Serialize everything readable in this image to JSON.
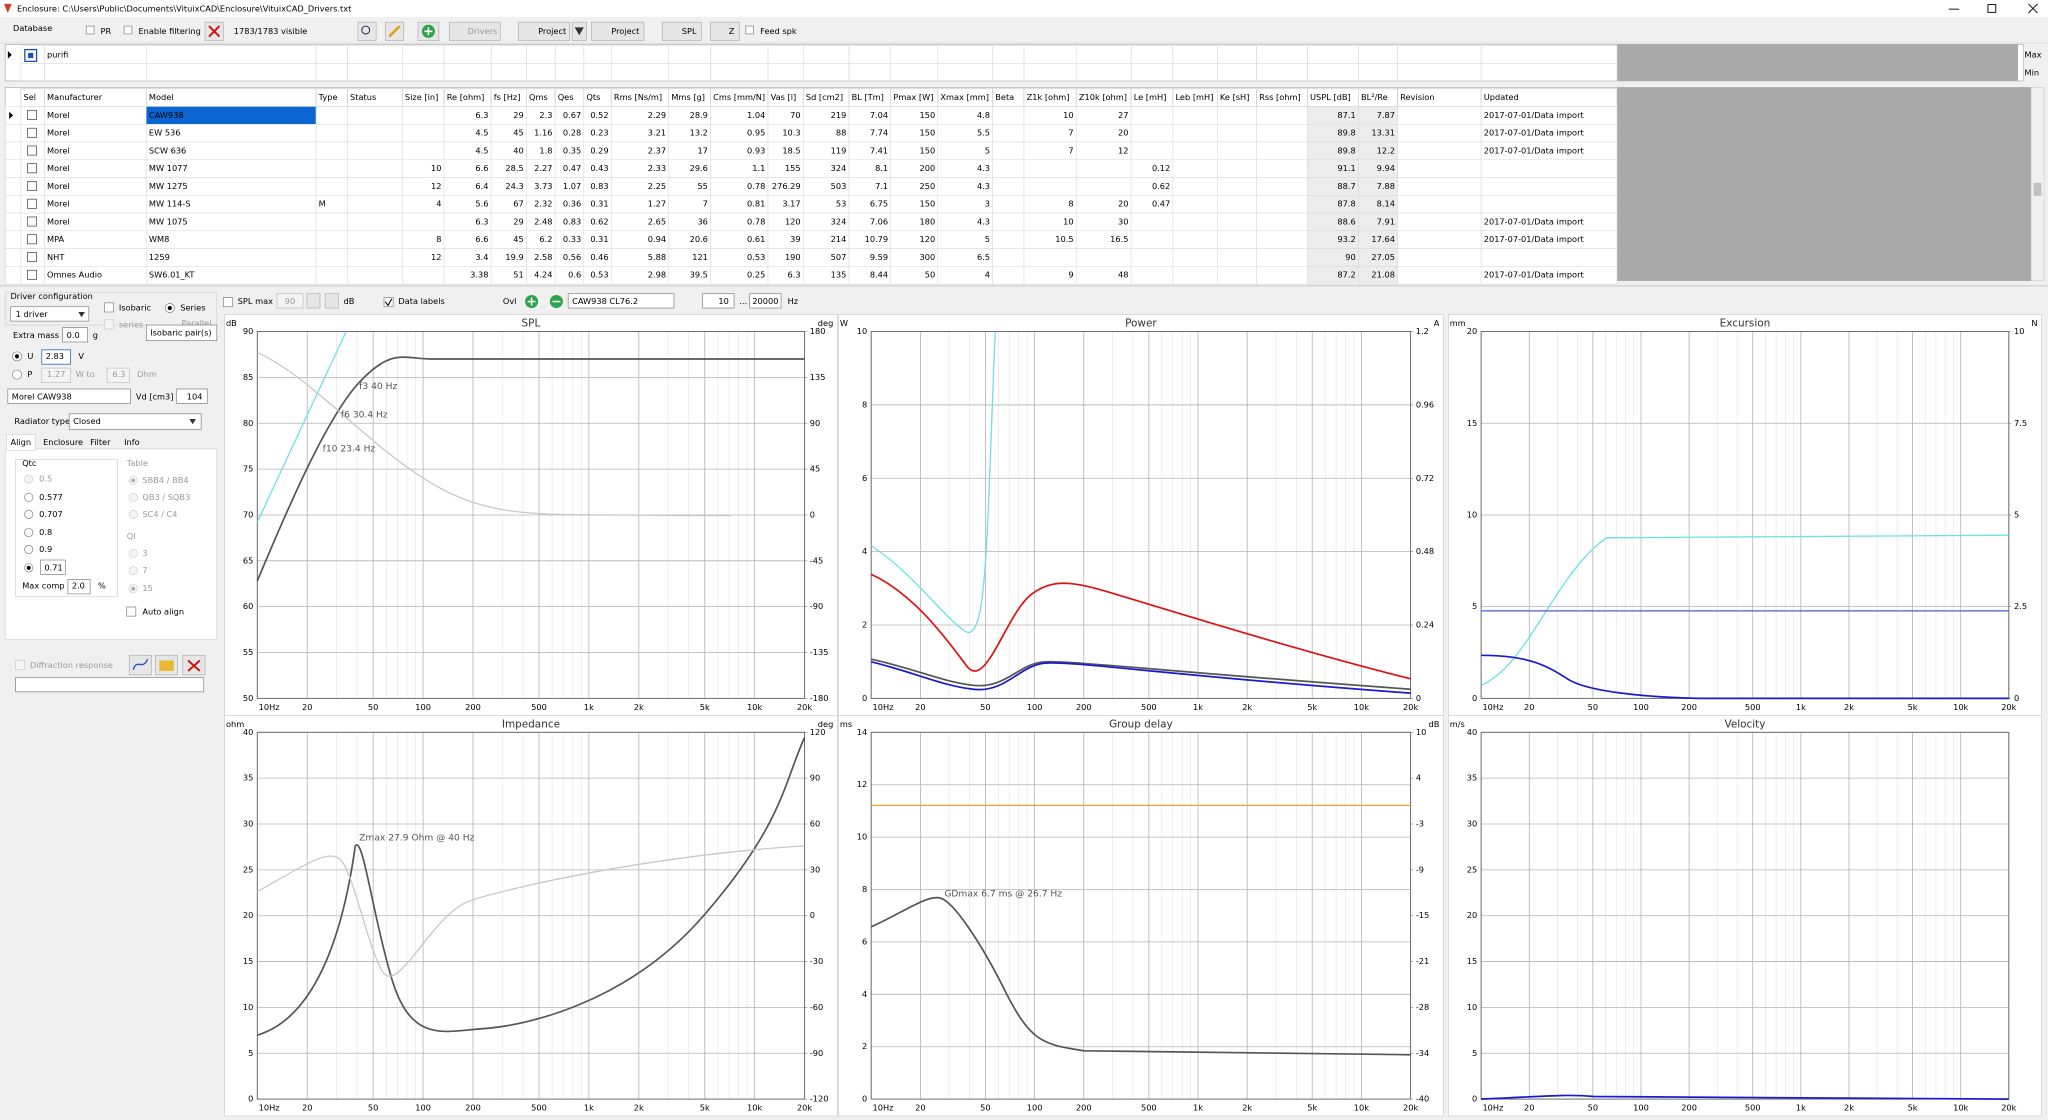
{
  "title_bar": {
    "title": "Enclosure: C:\\Users\\Public\\Documents\\VituixCAD\\Enclosure\\VituixCAD_Drivers.txt"
  },
  "toolbar": {
    "database": "Database",
    "pr": "PR",
    "enable_filtering": "Enable filtering",
    "visible": "1783/1783 visible",
    "drivers": "Drivers",
    "project": "Project",
    "project_2": "Project",
    "spl": "SPL",
    "z": "Z",
    "feed_spk": "Feed spk"
  },
  "filter": {
    "text": "purifi",
    "max": "Max",
    "min": "Min"
  },
  "table": {
    "columns": [
      "Sel",
      "Manufacturer",
      "Model",
      "Type",
      "Status",
      "Size [in]",
      "Re [ohm]",
      "fs [Hz]",
      "Qms",
      "Qes",
      "Qts",
      "Rms [Ns/m]",
      "Mms [g]",
      "Cms [mm/N]",
      "Vas [l]",
      "Sd [cm2]",
      "BL [Tm]",
      "Pmax [W]",
      "Xmax [mm]",
      "Beta",
      "Z1k [ohm]",
      "Z10k [ohm]",
      "Le [mH]",
      "Leb [mH]",
      "Ke [sH]",
      "Rss [ohm]",
      "USPL [dB]",
      "BL²/Re",
      "Revision",
      "Updated"
    ],
    "rows": [
      [
        "Morel",
        "CAW938",
        null,
        null,
        null,
        6.3,
        29,
        2.3,
        0.67,
        0.52,
        2.29,
        28.9,
        1.04,
        70,
        219,
        7.04,
        150,
        4.8,
        null,
        10,
        27,
        null,
        null,
        null,
        null,
        87.1,
        7.87,
        null,
        "2017-07-01/Data import"
      ],
      [
        "Morel",
        "EW 536",
        null,
        null,
        null,
        4.5,
        45,
        1.16,
        0.28,
        0.23,
        3.21,
        13.2,
        0.95,
        10.3,
        88,
        7.74,
        150,
        5.5,
        null,
        7,
        20,
        null,
        null,
        null,
        null,
        89.8,
        13.31,
        null,
        "2017-07-01/Data import"
      ],
      [
        "Morel",
        "SCW 636",
        null,
        null,
        null,
        4.5,
        40,
        1.8,
        0.35,
        0.29,
        2.37,
        17,
        0.93,
        18.5,
        119,
        7.41,
        150,
        5,
        null,
        7,
        12,
        null,
        null,
        null,
        null,
        89.8,
        12.2,
        null,
        "2017-07-01/Data import"
      ],
      [
        "Morel",
        "MW 1077",
        null,
        null,
        10,
        6.6,
        28.5,
        2.27,
        0.47,
        0.43,
        2.33,
        29.6,
        1.1,
        155,
        324,
        8.1,
        200,
        4.3,
        null,
        null,
        null,
        0.12,
        null,
        null,
        null,
        91.1,
        9.94,
        null,
        null
      ],
      [
        "Morel",
        "MW 1275",
        null,
        null,
        12,
        6.4,
        24.3,
        3.73,
        1.07,
        0.83,
        2.25,
        55,
        0.78,
        276.29,
        503,
        7.1,
        250,
        4.3,
        null,
        null,
        null,
        0.62,
        null,
        null,
        null,
        88.7,
        7.88,
        null,
        null
      ],
      [
        "Morel",
        "MW 114-S",
        "M",
        null,
        4,
        5.6,
        67,
        2.32,
        0.36,
        0.31,
        1.27,
        7,
        0.81,
        3.17,
        53,
        6.75,
        150,
        3,
        null,
        8,
        20,
        0.47,
        null,
        null,
        null,
        87.8,
        8.14,
        null,
        null
      ],
      [
        "Morel",
        "MW 1075",
        null,
        null,
        null,
        6.3,
        29,
        2.48,
        0.83,
        0.62,
        2.65,
        36,
        0.78,
        120,
        324,
        7.06,
        180,
        4.3,
        null,
        10,
        30,
        null,
        null,
        null,
        null,
        88.6,
        7.91,
        null,
        "2017-07-01/Data import"
      ],
      [
        "MPA",
        "WM8",
        null,
        null,
        8,
        6.6,
        45,
        6.2,
        0.33,
        0.31,
        0.94,
        20.6,
        0.61,
        39,
        214,
        10.79,
        120,
        5,
        null,
        10.5,
        16.5,
        null,
        null,
        null,
        null,
        93.2,
        17.64,
        null,
        "2017-07-01/Data import"
      ],
      [
        "NHT",
        "1259",
        null,
        null,
        12,
        3.4,
        19.9,
        2.58,
        0.56,
        0.46,
        5.88,
        121,
        0.53,
        190,
        507,
        9.59,
        300,
        6.5,
        null,
        null,
        null,
        null,
        null,
        null,
        null,
        90,
        27.05,
        null,
        null
      ],
      [
        "Omnes Audio",
        "SW6.01_KT",
        null,
        null,
        null,
        3.38,
        51,
        4.24,
        0.6,
        0.53,
        2.98,
        39.5,
        0.25,
        6.3,
        135,
        8.44,
        50,
        4,
        null,
        9,
        48,
        null,
        null,
        null,
        null,
        87.2,
        21.08,
        null,
        "2017-07-01/Data import"
      ]
    ]
  },
  "left_panel": {
    "driver_configuration": "Driver configuration",
    "drivers": "1 driver",
    "isobaric": "Isobaric",
    "series": "Series",
    "series_2": "series",
    "parallel": "Parallel",
    "tooltip": "Isobaric pair(s)",
    "extra_mass": "Extra mass",
    "extra_mass_value": "0.0",
    "extra_mass_unit": "g",
    "u": "U",
    "u_value": 2.83,
    "u_unit": "V",
    "p": "P",
    "p_value": 1.27,
    "w_to": "W to",
    "ohm_value": 6.3,
    "ohm": "Ohm",
    "driver_name": "Morel CAW938",
    "vd": "Vd [cm3]",
    "vd_value": 104,
    "radiator_type": "Radiator type",
    "radiator_value": "Closed",
    "tabs": [
      "Align",
      "Enclosure",
      "Filter",
      "Info"
    ],
    "qtc": "Qtc",
    "qtc_options": [
      0.5,
      0.577,
      0.707,
      0.8,
      0.9
    ],
    "qtc_value": 0.71,
    "max_comp": "Max comp",
    "max_comp_value": "2.0",
    "max_comp_unit": "%",
    "table": "Table",
    "table_options": [
      "SBB4 / BB4",
      "QB3 / SQB3",
      "SC4 / C4"
    ],
    "qi": "QI",
    "qi_options": [
      3,
      7,
      15
    ],
    "auto_align": "Auto align",
    "diffraction_response": "Diffraction response"
  },
  "graph_bar": {
    "spl_max": "SPL max",
    "spl_max_value": 90,
    "db": "dB",
    "data_labels": "Data labels",
    "ovl": "Ovl",
    "overlay": "CAW938 CL76.2",
    "f_min": 10,
    "dots": "...",
    "f_max": 20000,
    "hz": "Hz"
  },
  "graphs": [
    {
      "title": "SPL",
      "left_unit": "dB",
      "right_unit": "deg",
      "xlim": [
        10,
        20000
      ],
      "xticks": [
        {
          "value": 10,
          "label": "10Hz"
        },
        20,
        50,
        100,
        200,
        500,
        {
          "value": 1000,
          "label": "1k"
        },
        {
          "value": 2000,
          "label": "2k"
        },
        {
          "value": 5000,
          "label": "5k"
        },
        {
          "value": 10000,
          "label": "10k"
        },
        {
          "value": 20000,
          "label": "20k"
        }
      ],
      "ylim": [
        50,
        90
      ],
      "yticks": [
        50,
        55,
        60,
        65,
        70,
        75,
        80,
        85,
        90
      ],
      "y2lim": [
        -180,
        180
      ],
      "y2ticks": [
        -180,
        -135,
        -90,
        -45,
        0,
        45,
        90,
        135,
        180
      ],
      "annotations": [
        "f3 40 Hz",
        "f6 30.4 Hz",
        "f10 23.4 Hz"
      ]
    },
    {
      "title": "Power",
      "left_unit": "W",
      "right_unit": "A",
      "xlim": [
        10,
        20000
      ],
      "xticks": [
        {
          "value": 10,
          "label": "10Hz"
        },
        20,
        50,
        100,
        200,
        500,
        {
          "value": 1000,
          "label": "1k"
        },
        {
          "value": 2000,
          "label": "2k"
        },
        {
          "value": 5000,
          "label": "5k"
        },
        {
          "value": 10000,
          "label": "10k"
        },
        {
          "value": 20000,
          "label": "20k"
        }
      ],
      "ylim": [
        0,
        10
      ],
      "yticks": [
        0,
        2,
        4,
        6,
        8,
        10
      ],
      "y2lim": [
        0,
        1.2
      ],
      "y2ticks": [
        0,
        0.24,
        0.48,
        0.72,
        0.96,
        1.2
      ]
    },
    {
      "title": "Excursion",
      "left_unit": "mm",
      "right_unit": "N",
      "xlim": [
        10,
        20000
      ],
      "xticks": [
        {
          "value": 10,
          "label": "10Hz"
        },
        20,
        50,
        100,
        200,
        500,
        {
          "value": 1000,
          "label": "1k"
        },
        {
          "value": 2000,
          "label": "2k"
        },
        {
          "value": 5000,
          "label": "5k"
        },
        {
          "value": 10000,
          "label": "10k"
        },
        {
          "value": 20000,
          "label": "20k"
        }
      ],
      "ylim": [
        0,
        20
      ],
      "yticks": [
        0,
        5,
        10,
        15,
        20
      ],
      "y2lim": [
        0,
        10
      ],
      "y2ticks": [
        0,
        2.5,
        5,
        7.5,
        10
      ]
    },
    {
      "title": "Impedance",
      "left_unit": "ohm",
      "right_unit": "deg",
      "xlim": [
        10,
        20000
      ],
      "xticks": [
        {
          "value": 10,
          "label": "10Hz"
        },
        20,
        50,
        100,
        200,
        500,
        {
          "value": 1000,
          "label": "1k"
        },
        {
          "value": 2000,
          "label": "2k"
        },
        {
          "value": 5000,
          "label": "5k"
        },
        {
          "value": 10000,
          "label": "10k"
        },
        {
          "value": 20000,
          "label": "20k"
        }
      ],
      "ylim": [
        0,
        40
      ],
      "yticks": [
        0,
        5,
        10,
        15,
        20,
        25,
        30,
        35,
        40
      ],
      "y2lim": [
        -120,
        120
      ],
      "y2ticks": [
        -120,
        -90,
        -60,
        -30,
        0,
        30,
        60,
        90,
        120
      ],
      "annotations": [
        "Zmax 27.9 Ohm @ 40 Hz"
      ]
    },
    {
      "title": "Group delay",
      "left_unit": "ms",
      "right_unit": "dB",
      "xlim": [
        10,
        20000
      ],
      "xticks": [
        {
          "value": 10,
          "label": "10Hz"
        },
        20,
        50,
        100,
        200,
        500,
        {
          "value": 1000,
          "label": "1k"
        },
        {
          "value": 2000,
          "label": "2k"
        },
        {
          "value": 5000,
          "label": "5k"
        },
        {
          "value": 10000,
          "label": "10k"
        },
        {
          "value": 20000,
          "label": "20k"
        }
      ],
      "ylim": [
        0,
        14
      ],
      "yticks": [
        0,
        2,
        4,
        6,
        8,
        10,
        12,
        14
      ],
      "y2lim": [
        -40,
        10
      ],
      "y2ticks": [
        -40,
        {
          "value": -33.75,
          "label": "-34"
        },
        {
          "value": -27.5,
          "label": "-28"
        },
        {
          "value": -21.25,
          "label": "-21"
        },
        -15,
        {
          "value": -8.75,
          "label": "-9"
        },
        {
          "value": -2.5,
          "label": "-3"
        },
        {
          "value": 3.75,
          "label": "4"
        },
        10
      ],
      "annotations": [
        "GDmax 6.7 ms  @ 26.7 Hz"
      ]
    },
    {
      "title": "Velocity",
      "left_unit": "m/s",
      "xlim": [
        10,
        20000
      ],
      "xticks": [
        {
          "value": 10,
          "label": "10Hz"
        },
        20,
        50,
        100,
        200,
        500,
        {
          "value": 1000,
          "label": "1k"
        },
        {
          "value": 2000,
          "label": "2k"
        },
        {
          "value": 5000,
          "label": "5k"
        },
        {
          "value": 10000,
          "label": "10k"
        },
        {
          "value": 20000,
          "label": "20k"
        }
      ],
      "ylim": [
        0,
        40
      ],
      "yticks": [
        0,
        5,
        10,
        15,
        20,
        25,
        30,
        35,
        40
      ]
    }
  ]
}
